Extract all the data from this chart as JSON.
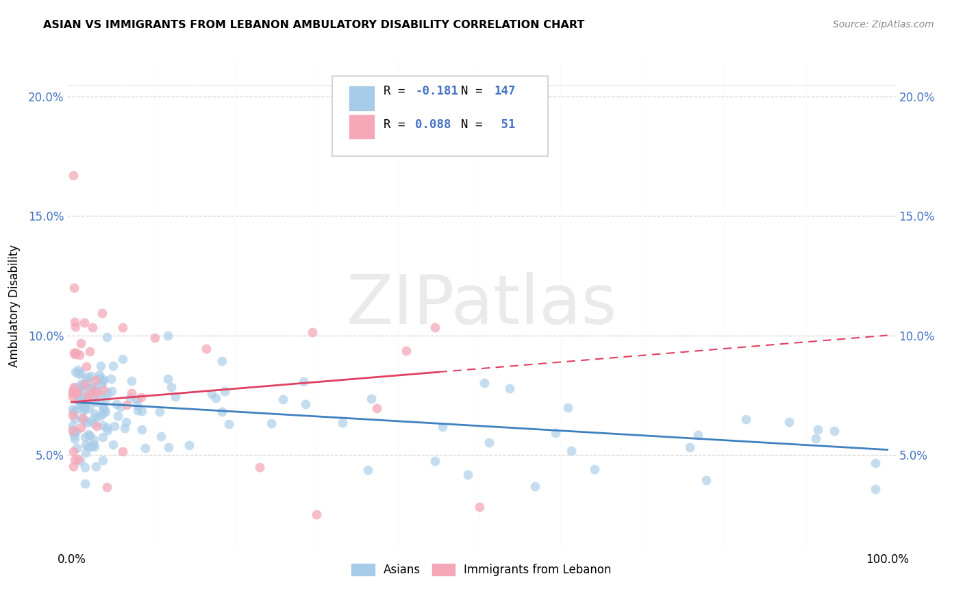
{
  "title": "ASIAN VS IMMIGRANTS FROM LEBANON AMBULATORY DISABILITY CORRELATION CHART",
  "source": "Source: ZipAtlas.com",
  "ylabel": "Ambulatory Disability",
  "color_asian": "#a8cce8",
  "color_lebanon": "#f4a8b8",
  "trendline_asian": "#4080c0",
  "trendline_lebanon": "#e04060",
  "background_color": "#ffffff",
  "grid_color": "#d0d0d0",
  "ytick_color": "#4472c4",
  "yticks": [
    0.05,
    0.1,
    0.15,
    0.2
  ],
  "ytick_labels": [
    "5.0%",
    "10.0%",
    "15.0%",
    "20.0%"
  ],
  "xtick_labels": [
    "0.0%",
    "100.0%"
  ],
  "legend_r_asian": "-0.181",
  "legend_n_asian": "147",
  "legend_r_lebanon": "0.088",
  "legend_n_lebanon": "51",
  "watermark_text": "ZIPatlas",
  "legend_label_asian": "Asians",
  "legend_label_lebanon": "Immigrants from Lebanon"
}
